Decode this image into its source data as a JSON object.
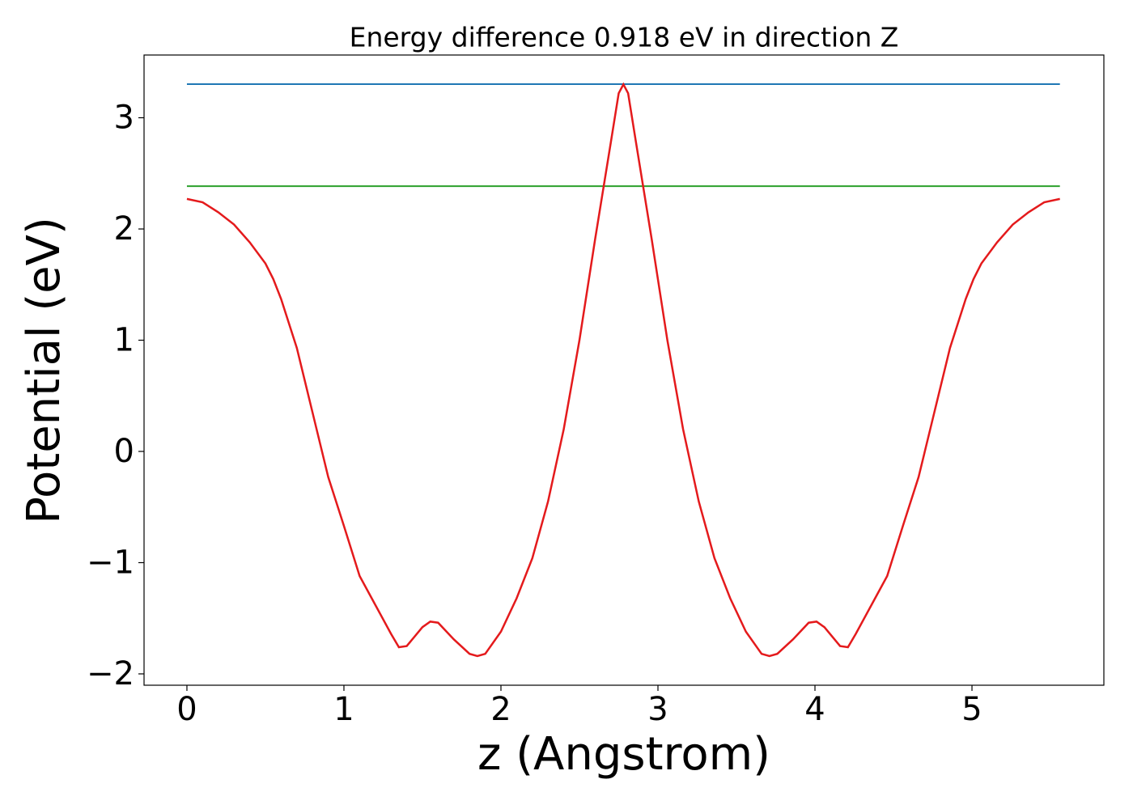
{
  "chart_data": {
    "type": "line",
    "title": "Energy difference 0.918 eV in direction Z",
    "xlabel": "z (Angstrom)",
    "ylabel": "Potential (eV)",
    "xlim": [
      -0.273,
      5.84
    ],
    "ylim": [
      -2.102,
      3.564
    ],
    "xticks": [
      0,
      1,
      2,
      3,
      4,
      5
    ],
    "yticks": [
      {
        "value": -2,
        "label": "−2"
      },
      {
        "value": -1,
        "label": "−1"
      },
      0,
      1,
      2,
      3
    ],
    "series": [
      {
        "color": "#1f77b4",
        "x": [
          0,
          5.56
        ],
        "values": [
          3.302,
          3.302
        ]
      },
      {
        "color": "#2ca02c",
        "x": [
          0,
          5.56
        ],
        "values": [
          2.385,
          2.385
        ]
      },
      {
        "color": "#e41a1c",
        "x": [
          0,
          0.1,
          0.2,
          0.3,
          0.4,
          0.5,
          0.55,
          0.6,
          0.65,
          0.7,
          0.8,
          0.9,
          1.0,
          1.1,
          1.2,
          1.3,
          1.35,
          1.4,
          1.5,
          1.55,
          1.6,
          1.7,
          1.8,
          1.85,
          1.9,
          2.0,
          2.1,
          2.2,
          2.3,
          2.4,
          2.5,
          2.6,
          2.7,
          2.75,
          2.78,
          2.81,
          2.86,
          2.96,
          3.06,
          3.16,
          3.26,
          3.36,
          3.46,
          3.56,
          3.66,
          3.71,
          3.76,
          3.86,
          3.96,
          4.01,
          4.06,
          4.16,
          4.21,
          4.26,
          4.36,
          4.46,
          4.56,
          4.66,
          4.76,
          4.86,
          4.91,
          4.96,
          5.01,
          5.06,
          5.16,
          5.26,
          5.36,
          5.46,
          5.56
        ],
        "values": [
          2.27,
          2.24,
          2.15,
          2.04,
          1.88,
          1.69,
          1.55,
          1.37,
          1.15,
          0.93,
          0.35,
          -0.23,
          -0.67,
          -1.12,
          -1.38,
          -1.64,
          -1.76,
          -1.75,
          -1.58,
          -1.53,
          -1.54,
          -1.69,
          -1.82,
          -1.84,
          -1.82,
          -1.62,
          -1.32,
          -0.96,
          -0.45,
          0.2,
          1.0,
          1.91,
          2.78,
          3.22,
          3.3,
          3.22,
          2.78,
          1.91,
          1.0,
          0.2,
          -0.45,
          -0.96,
          -1.32,
          -1.62,
          -1.82,
          -1.84,
          -1.82,
          -1.69,
          -1.54,
          -1.53,
          -1.58,
          -1.75,
          -1.76,
          -1.64,
          -1.38,
          -1.12,
          -0.67,
          -0.23,
          0.35,
          0.93,
          1.15,
          1.37,
          1.55,
          1.69,
          1.88,
          2.04,
          2.15,
          2.24,
          2.27
        ]
      }
    ]
  }
}
